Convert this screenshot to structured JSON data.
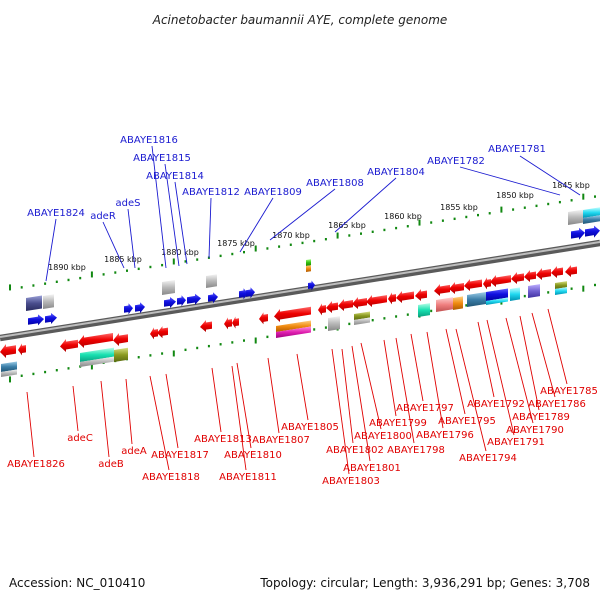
{
  "title": "Acinetobacter baumannii AYE, complete genome",
  "footer": {
    "accession": "Accession: NC_010410",
    "topology": "Topology: circular; Length: 3,936,291 bp; Genes: 3,708"
  },
  "colors": {
    "top_labels": "#1a1ad0",
    "bottom_labels": "#e00000",
    "forward_gene": "#1010e0",
    "reverse_gene": "#e00000",
    "backbone": "#8a8a8a",
    "ticks": "#118811"
  },
  "scale_labels": [
    "1845 kbp",
    "1850 kbp",
    "1855 kbp",
    "1860 kbp",
    "1865 kbp",
    "1870 kbp",
    "1875 kbp",
    "1880 kbp",
    "1885 kbp",
    "1890 kbp"
  ],
  "top_labels": [
    "ABAYE1781",
    "ABAYE1782",
    "ABAYE1804",
    "ABAYE1808",
    "ABAYE1809",
    "ABAYE1812",
    "ABAYE1814",
    "ABAYE1815",
    "ABAYE1816",
    "adeS",
    "adeR",
    "ABAYE1824"
  ],
  "bottom_labels": [
    "ABAYE1826",
    "adeC",
    "adeB",
    "adeA",
    "ABAYE1817",
    "ABAYE1818",
    "ABAYE1813",
    "ABAYE1810",
    "ABAYE1811",
    "ABAYE1807",
    "ABAYE1805",
    "ABAYE1802",
    "ABAYE1801",
    "ABAYE1803",
    "ABAYE1800",
    "ABAYE1799",
    "ABAYE1798",
    "ABAYE1797",
    "ABAYE1796",
    "ABAYE1795",
    "ABAYE1794",
    "ABAYE1792",
    "ABAYE1791",
    "ABAYE1790",
    "ABAYE1789",
    "ABAYE1786",
    "ABAYE1785"
  ]
}
